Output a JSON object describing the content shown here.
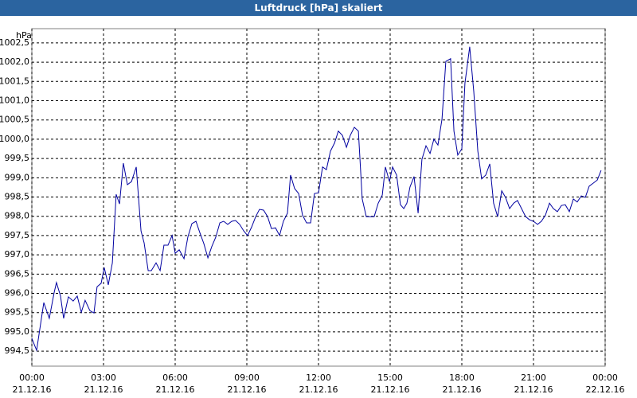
{
  "chart_data": {
    "type": "line",
    "title": "Luftdruck [hPa] skaliert",
    "ylabel": "hPa",
    "xlim": [
      0,
      24
    ],
    "ylim": [
      994.11,
      1002.87
    ],
    "grid": true,
    "xticks": [
      {
        "value": 0,
        "label": "00:00",
        "date": "21.12.16"
      },
      {
        "value": 3,
        "label": "03:00",
        "date": "21.12.16"
      },
      {
        "value": 6,
        "label": "06:00",
        "date": "21.12.16"
      },
      {
        "value": 9,
        "label": "09:00",
        "date": "21.12.16"
      },
      {
        "value": 12,
        "label": "12:00",
        "date": "21.12.16"
      },
      {
        "value": 15,
        "label": "15:00",
        "date": "21.12.16"
      },
      {
        "value": 18,
        "label": "18:00",
        "date": "21.12.16"
      },
      {
        "value": 21,
        "label": "21:00",
        "date": "21.12.16"
      },
      {
        "value": 24,
        "label": "00:00",
        "date": "22.12.16"
      }
    ],
    "yticks": [
      {
        "value": 994.5,
        "label": "994,5"
      },
      {
        "value": 995,
        "label": "995,0"
      },
      {
        "value": 995.5,
        "label": "995,5"
      },
      {
        "value": 996,
        "label": "996,0"
      },
      {
        "value": 996.5,
        "label": "996,5"
      },
      {
        "value": 997,
        "label": "997,0"
      },
      {
        "value": 997.5,
        "label": "997,5"
      },
      {
        "value": 998,
        "label": "998,0"
      },
      {
        "value": 998.5,
        "label": "998,5"
      },
      {
        "value": 999,
        "label": "999,0"
      },
      {
        "value": 999.5,
        "label": "999,5"
      },
      {
        "value": 1000,
        "label": "1000,0"
      },
      {
        "value": 1000.5,
        "label": "1000,5"
      },
      {
        "value": 1001,
        "label": "1001,0"
      },
      {
        "value": 1001.5,
        "label": "1001,5"
      },
      {
        "value": 1002,
        "label": "1002,0"
      },
      {
        "value": 1002.5,
        "label": "1002,5"
      }
    ],
    "x": [
      0,
      0.2,
      0.5,
      0.73,
      0.93,
      1.03,
      1.2,
      1.33,
      1.53,
      1.73,
      1.9,
      2.07,
      2.23,
      2.43,
      2.6,
      2.73,
      2.9,
      3.03,
      3.2,
      3.37,
      3.53,
      3.67,
      3.83,
      4.0,
      4.17,
      4.37,
      4.57,
      4.7,
      4.87,
      5.0,
      5.2,
      5.37,
      5.53,
      5.7,
      5.87,
      6.0,
      6.17,
      6.37,
      6.53,
      6.7,
      6.87,
      7.03,
      7.2,
      7.37,
      7.53,
      7.7,
      7.87,
      8.03,
      8.2,
      8.37,
      8.53,
      8.7,
      8.87,
      9.03,
      9.2,
      9.37,
      9.53,
      9.7,
      9.87,
      10.03,
      10.2,
      10.37,
      10.53,
      10.7,
      10.83,
      11.0,
      11.17,
      11.33,
      11.5,
      11.67,
      11.83,
      12.0,
      12.17,
      12.33,
      12.5,
      12.67,
      12.83,
      13.0,
      13.17,
      13.33,
      13.5,
      13.67,
      13.83,
      14.0,
      14.17,
      14.33,
      14.5,
      14.67,
      14.8,
      14.97,
      15.1,
      15.27,
      15.43,
      15.57,
      15.7,
      15.83,
      16.0,
      16.17,
      16.33,
      16.5,
      16.67,
      16.83,
      17.0,
      17.17,
      17.33,
      17.53,
      17.67,
      17.83,
      18.0,
      18.13,
      18.33,
      18.5,
      18.67,
      18.83,
      19.0,
      19.17,
      19.33,
      19.5,
      19.67,
      19.83,
      20.0,
      20.17,
      20.33,
      20.5,
      20.67,
      20.83,
      21.0,
      21.17,
      21.33,
      21.5,
      21.67,
      21.83,
      22.0,
      22.17,
      22.33,
      22.5,
      22.67,
      22.83,
      23.0,
      23.17,
      23.33,
      23.5,
      23.67,
      23.83
    ],
    "series": [
      {
        "color": "#0000a0",
        "values": [
          994.83,
          994.52,
          995.76,
          995.35,
          996.01,
          996.28,
          995.93,
          995.35,
          995.91,
          995.8,
          995.93,
          995.51,
          995.82,
          995.55,
          995.49,
          996.17,
          996.26,
          996.67,
          996.22,
          996.79,
          998.57,
          998.32,
          999.38,
          998.82,
          998.9,
          999.28,
          997.62,
          997.31,
          996.59,
          996.59,
          996.79,
          996.59,
          997.25,
          997.25,
          997.5,
          997.04,
          997.13,
          996.9,
          997.46,
          997.81,
          997.87,
          997.58,
          997.29,
          996.92,
          997.21,
          997.46,
          997.83,
          997.87,
          997.79,
          997.87,
          997.89,
          997.79,
          997.62,
          997.5,
          997.72,
          997.99,
          998.18,
          998.16,
          997.99,
          997.68,
          997.7,
          997.5,
          997.87,
          998.08,
          999.07,
          998.72,
          998.59,
          998.03,
          997.83,
          997.83,
          998.59,
          998.61,
          999.28,
          999.21,
          999.69,
          999.9,
          1000.21,
          1000.1,
          999.79,
          1000.1,
          1000.31,
          1000.21,
          998.45,
          997.99,
          997.99,
          997.99,
          998.34,
          998.55,
          999.28,
          998.9,
          999.28,
          999.07,
          998.3,
          998.2,
          998.34,
          998.76,
          999.03,
          998.08,
          999.48,
          999.83,
          999.63,
          1000.0,
          999.85,
          1000.52,
          1002.02,
          1002.09,
          1000.21,
          999.59,
          999.75,
          1001.45,
          1002.4,
          1001.24,
          999.69,
          998.97,
          999.07,
          999.36,
          998.34,
          997.99,
          998.66,
          998.49,
          998.2,
          998.34,
          998.41,
          998.2,
          997.99,
          997.91,
          997.87,
          997.79,
          997.87,
          998.03,
          998.34,
          998.2,
          998.12,
          998.28,
          998.3,
          998.12,
          998.45,
          998.37,
          998.53,
          998.49,
          998.78,
          998.86,
          998.94,
          999.19
        ]
      }
    ]
  }
}
